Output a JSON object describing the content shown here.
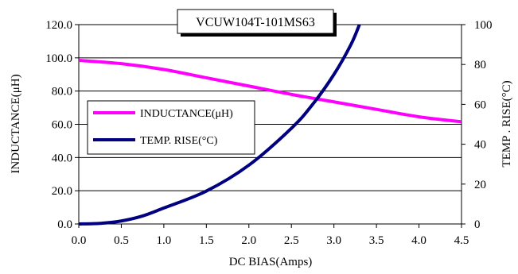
{
  "chart_data": {
    "type": "line",
    "title": "VCUW104T-101MS63",
    "xlabel": "DC BIAS(Amps)",
    "ylabel_left": "INDUCTANCE(μH)",
    "ylabel_right": "TEMP . RISE(°C)",
    "xlim": [
      0,
      4.5
    ],
    "ylim_left": [
      0,
      120
    ],
    "ylim_right": [
      0,
      100
    ],
    "x_ticks": [
      "0.0",
      "0.5",
      "1.0",
      "1.5",
      "2.0",
      "2.5",
      "3.0",
      "3.5",
      "4.0",
      "4.5"
    ],
    "y_ticks_left": [
      "0.0",
      "20.0",
      "40.0",
      "60.0",
      "80.0",
      "100.0",
      "120.0"
    ],
    "y_ticks_right": [
      "0",
      "20",
      "40",
      "60",
      "80",
      "100"
    ],
    "grid": "horizontal",
    "legend_position": "middle-left",
    "series": [
      {
        "name": "INDUCTANCE(μH)",
        "axis": "left",
        "color": "#ff00ff",
        "x": [
          0,
          0.5,
          1.0,
          1.5,
          2.0,
          2.5,
          3.0,
          3.5,
          4.0,
          4.5
        ],
        "values": [
          98.5,
          96.5,
          93,
          88,
          83,
          78,
          73.5,
          69,
          64.5,
          61.5
        ]
      },
      {
        "name": "TEMP. RISE(°C)",
        "axis": "right",
        "color": "#000080",
        "x": [
          0,
          0.25,
          0.5,
          0.75,
          1.0,
          1.5,
          2.0,
          2.5,
          2.75,
          3.0,
          3.2,
          3.3
        ],
        "values": [
          0,
          0.3,
          1.5,
          4,
          8,
          16.5,
          29.5,
          48,
          60,
          75,
          90,
          100
        ]
      }
    ]
  }
}
